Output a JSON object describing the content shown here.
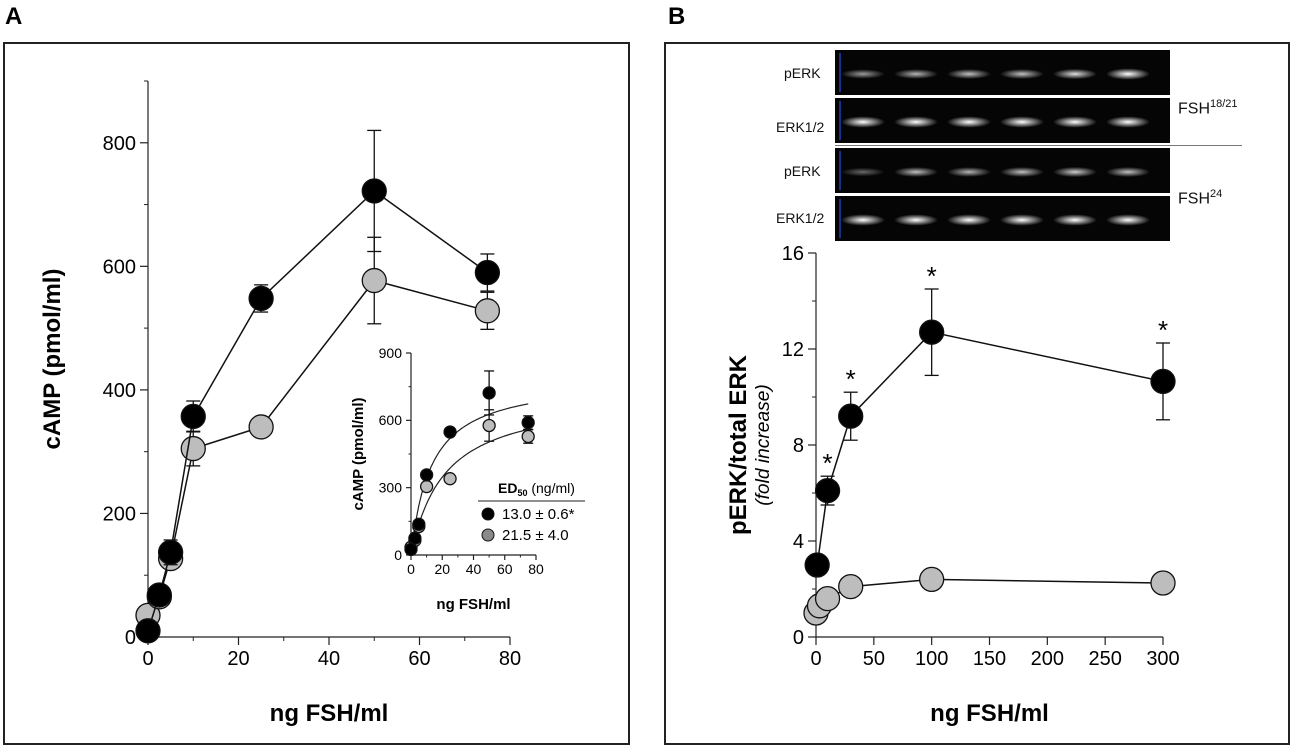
{
  "panels": {
    "a": {
      "letter": "A"
    },
    "b": {
      "letter": "B"
    }
  },
  "blots": {
    "pERK_label": "pERK",
    "ERK_label": "ERK1/2",
    "group1_name": "FSH",
    "group1_sup": "18/21",
    "group2_name": "FSH",
    "group2_sup": "24",
    "pERK_group1_intensity": [
      0.35,
      0.45,
      0.5,
      0.5,
      0.62,
      0.85
    ],
    "pERK_group2_intensity": [
      0.15,
      0.5,
      0.45,
      0.5,
      0.55,
      0.5
    ],
    "ERK_intensity": [
      0.85,
      0.85,
      0.85,
      0.85,
      0.85,
      0.85
    ]
  },
  "chart_data": [
    {
      "type": "line",
      "id": "panel-a-main",
      "xlabel": "ng FSH/ml",
      "ylabel": "cAMP (pmol/ml)",
      "xlim": [
        0,
        80
      ],
      "ylim": [
        0,
        900
      ],
      "xticks": [
        0,
        20,
        40,
        60,
        80
      ],
      "yticks": [
        0,
        200,
        400,
        600,
        800
      ],
      "series": [
        {
          "color": "#000000",
          "x": [
            0,
            2.5,
            5,
            10,
            25,
            50,
            75
          ],
          "y": [
            10,
            68,
            137,
            357,
            548,
            722,
            590
          ],
          "err": [
            5,
            10,
            20,
            25,
            22,
            98,
            30
          ]
        },
        {
          "color": "#bdbdbd",
          "x": [
            0,
            2.5,
            5,
            10,
            25,
            50,
            75
          ],
          "y": [
            35,
            65,
            127,
            305,
            340,
            577,
            528
          ],
          "err": [
            5,
            8,
            12,
            28,
            10,
            70,
            30
          ]
        }
      ]
    },
    {
      "type": "scatter",
      "id": "panel-a-inset",
      "xlabel": "ng FSH/ml",
      "ylabel": "cAMP (pmol/ml)",
      "xlim": [
        0,
        80
      ],
      "ylim": [
        0,
        900
      ],
      "xticks": [
        0,
        20,
        40,
        60,
        80
      ],
      "yticks": [
        0,
        300,
        600,
        900
      ],
      "legend_title": "ED",
      "legend_title_sub": "50",
      "legend_title_unit": "(ng/ml)",
      "series": [
        {
          "color": "#000000",
          "name": "13.0 ± 0.6*",
          "x": [
            0,
            2.5,
            5,
            10,
            25,
            50,
            75
          ],
          "y": [
            25,
            75,
            137,
            357,
            548,
            722,
            590
          ],
          "err": [
            0,
            0,
            0,
            0,
            0,
            98,
            30
          ],
          "fit_ed50": 13.0,
          "fit_max": 790
        },
        {
          "color": "#bdbdbd",
          "name": "21.5 ± 4.0",
          "x": [
            0,
            2.5,
            5,
            10,
            25,
            50,
            75
          ],
          "y": [
            35,
            65,
            127,
            305,
            340,
            577,
            528
          ],
          "err": [
            0,
            0,
            0,
            0,
            0,
            70,
            30
          ],
          "fit_ed50": 21.5,
          "fit_max": 720
        }
      ]
    },
    {
      "type": "line",
      "id": "panel-b-main",
      "xlabel": "ng FSH/ml",
      "ylabel": "pERK/total ERK",
      "ylabel2": "(fold increase)",
      "xlim": [
        0,
        300
      ],
      "ylim": [
        0,
        16
      ],
      "xticks": [
        0,
        50,
        100,
        150,
        200,
        250,
        300
      ],
      "yticks": [
        0,
        4,
        8,
        12,
        16
      ],
      "annotation": "*",
      "series": [
        {
          "color": "#000000",
          "x": [
            1,
            10,
            30,
            100,
            300
          ],
          "y": [
            3.0,
            6.1,
            9.2,
            12.7,
            10.65
          ],
          "err": [
            0,
            0.6,
            1.0,
            1.8,
            1.6
          ],
          "significant": [
            false,
            true,
            true,
            true,
            true
          ]
        },
        {
          "color": "#bdbdbd",
          "x": [
            0,
            3,
            10,
            30,
            100,
            300
          ],
          "y": [
            1.0,
            1.3,
            1.6,
            2.1,
            2.4,
            2.25
          ],
          "err": [
            0,
            0,
            0,
            0,
            0,
            0
          ]
        }
      ]
    }
  ]
}
